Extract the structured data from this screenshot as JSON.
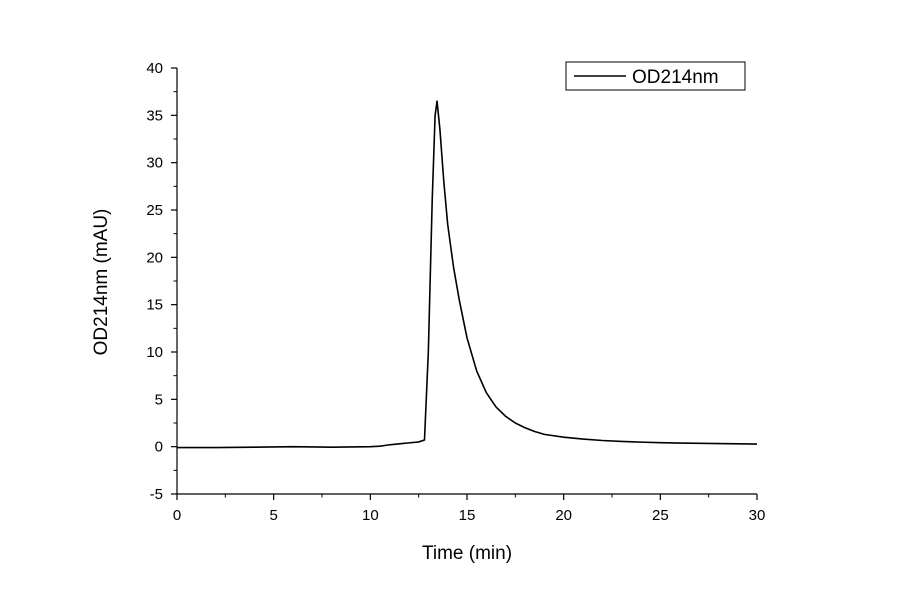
{
  "chart_data": {
    "type": "line",
    "title": "",
    "xlabel": "Time (min)",
    "ylabel": "OD214nm (mAU)",
    "xlim": [
      0,
      30
    ],
    "ylim": [
      -5,
      40
    ],
    "x_ticks": [
      0,
      5,
      10,
      15,
      20,
      25,
      30
    ],
    "y_ticks": [
      -5,
      0,
      5,
      10,
      15,
      20,
      25,
      30,
      35,
      40
    ],
    "grid": false,
    "legend_position": "top-right",
    "series": [
      {
        "name": "OD214nm",
        "color": "#000000",
        "x": [
          0,
          2,
          4,
          6,
          8,
          10,
          10.5,
          11,
          11.5,
          12,
          12.5,
          12.8,
          13.0,
          13.2,
          13.35,
          13.45,
          13.6,
          13.8,
          14.0,
          14.3,
          14.6,
          15.0,
          15.5,
          16.0,
          16.5,
          17.0,
          17.5,
          18.0,
          18.5,
          19.0,
          20.0,
          21.0,
          22.0,
          23.0,
          24.0,
          25.0,
          26.0,
          27.0,
          28.0,
          29.0,
          30.0
        ],
        "y": [
          -0.1,
          -0.1,
          -0.05,
          0.0,
          -0.05,
          0.0,
          0.05,
          0.2,
          0.3,
          0.4,
          0.5,
          0.7,
          10.0,
          26.0,
          35.0,
          36.5,
          33.5,
          28.0,
          23.5,
          19.0,
          15.5,
          11.5,
          8.0,
          5.7,
          4.2,
          3.2,
          2.5,
          2.0,
          1.6,
          1.3,
          1.0,
          0.8,
          0.65,
          0.55,
          0.48,
          0.42,
          0.38,
          0.35,
          0.33,
          0.3,
          0.28
        ]
      }
    ]
  }
}
